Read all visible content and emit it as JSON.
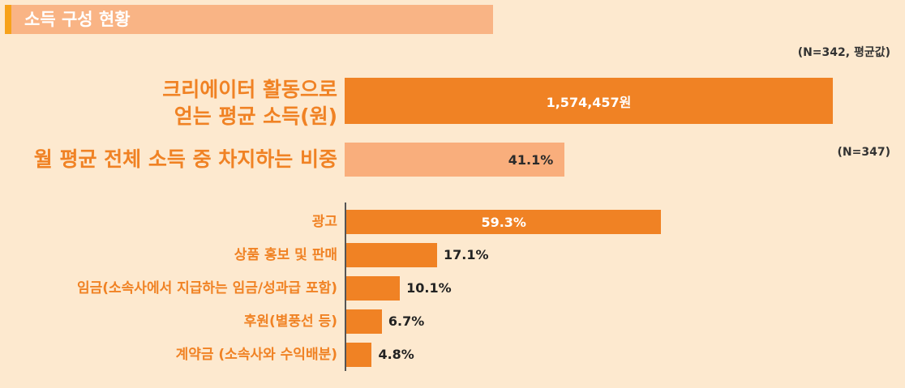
{
  "title": "소득 구성 현황",
  "note_top": "(N=342, 평균값)",
  "note_mid": "(N=347)",
  "colors": {
    "bar_dark": "#f08224",
    "bar_light": "#f9ae7c",
    "background": "#fde9cf",
    "label": "#f08224"
  },
  "chart_data": [
    {
      "type": "bar",
      "orientation": "horizontal",
      "categories": [
        "크리에이터 활동으로 얻는 평균 소득(원)"
      ],
      "label_lines": [
        "크리에이터 활동으로",
        "얻는 평균 소득(원)"
      ],
      "values": [
        1574457
      ],
      "value_labels": [
        "1,574,457원"
      ]
    },
    {
      "type": "bar",
      "orientation": "horizontal",
      "categories": [
        "월 평균 전체 소득 중 차지하는 비중"
      ],
      "values": [
        41.1
      ],
      "value_labels": [
        "41.1%"
      ],
      "xlim": [
        0,
        100
      ]
    },
    {
      "type": "bar",
      "orientation": "horizontal",
      "categories": [
        "광고",
        "상품 홍보  및 판매",
        "임금(소속사에서 지급하는 임금/성과급 포함)",
        "후원(별풍선 등)",
        "계약금 (소속사와 수익배분)"
      ],
      "values": [
        59.3,
        17.1,
        10.1,
        6.7,
        4.8
      ],
      "value_labels": [
        "59.3%",
        "17.1%",
        "10.1%",
        "6.7%",
        "4.8%"
      ],
      "xlim": [
        0,
        100
      ]
    }
  ]
}
